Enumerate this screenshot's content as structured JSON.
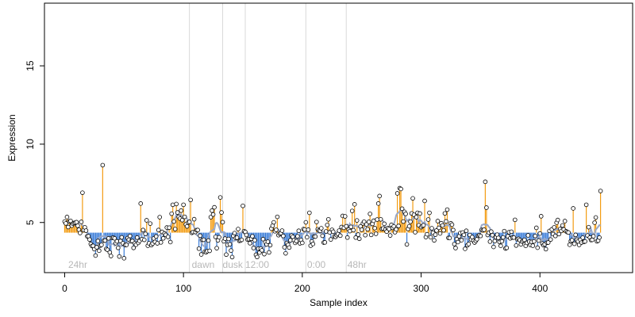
{
  "chart_data": {
    "type": "scatter",
    "xlabel": "Sample index",
    "ylabel": "Expression",
    "xlim": [
      -17,
      478
    ],
    "ylim": [
      1.8,
      19
    ],
    "xticks": [
      0,
      100,
      200,
      300,
      400
    ],
    "yticks": [
      5,
      10,
      15
    ],
    "segment_boundaries": [
      105,
      133,
      152,
      203,
      237
    ],
    "segment_labels": [
      {
        "text": "24hr",
        "x": 3
      },
      {
        "text": "dawn",
        "x": 107
      },
      {
        "text": "dusk",
        "x": 133
      },
      {
        "text": "12:00",
        "x": 152
      },
      {
        "text": "0:00",
        "x": 204
      },
      {
        "text": "48hr",
        "x": 238
      }
    ],
    "baseline": 4.35,
    "colors": {
      "above": "#f39c12",
      "below": "#3b7dd8",
      "trend": "#9aa9c8",
      "point_fill": "#ffffff",
      "point_stroke": "#000000",
      "boundary": "#d9d9d9"
    },
    "trend_window": 9,
    "sample_values": [
      5.06,
      4.94,
      5.35,
      4.71,
      5.07,
      5.1,
      4.8,
      4.92,
      4.97,
      4.99,
      5.02,
      4.79,
      4.54,
      4.33,
      5.04,
      6.9,
      4.51,
      4.69,
      4.48,
      4.12,
      4.13,
      3.91,
      3.63,
      3.5,
      3.51,
      3.3,
      2.89,
      3.42,
      3.82,
      3.2,
      3.53,
      3.57,
      8.66,
      3.84,
      3.85,
      3.31,
      3.26,
      3.99,
      3.09,
      2.86,
      4.02,
      4.03,
      3.99,
      3.68,
      3.8,
      3.38,
      2.83,
      3.82,
      4.05,
      3.67,
      2.72,
      3.56,
      3.57,
      4.0,
      3.9,
      4.14,
      3.8,
      3.82,
      3.38,
      3.67,
      3.58,
      4.04,
      3.7,
      3.82,
      6.21,
      3.94,
      4.52,
      3.89,
      4.27,
      5.14,
      3.52,
      3.67,
      4.93,
      3.56,
      3.65,
      3.98,
      3.76,
      4.11,
      3.67,
      4.52,
      5.34,
      3.73,
      4.4,
      3.99,
      4.3,
      4.21,
      4.68,
      4.08,
      4.67,
      3.75,
      5.56,
      6.13,
      5.06,
      4.58,
      6.18,
      5.64,
      5.36,
      5.25,
      5.76,
      5.15,
      6.13,
      5.36,
      4.88,
      4.75,
      5.0,
      5.04,
      6.44,
      4.34,
      4.39,
      5.21,
      4.39,
      4.51,
      4.52,
      3.33,
      4.16,
      2.96,
      3.89,
      3.9,
      3.14,
      3.1,
      3.17,
      3.85,
      3.19,
      5.34,
      5.76,
      5.51,
      5.97,
      4.08,
      3.36,
      3.86,
      4.06,
      6.6,
      5.64,
      5.02,
      3.8,
      3.97,
      2.95,
      3.57,
      3.95,
      3.61,
      3.21,
      2.79,
      4.14,
      4.32,
      4.01,
      4.03,
      4.58,
      3.83,
      3.85,
      3.89,
      6.06,
      4.45,
      4.4,
      4.2,
      3.91,
      3.94,
      3.68,
      3.96,
      4.12,
      3.37,
      3.87,
      2.94,
      2.8,
      3.33,
      3.08,
      3.33,
      3.22,
      3.94,
      2.98,
      3.75,
      3.6,
      3.77,
      3.09,
      3.55,
      4.61,
      4.79,
      5.01,
      4.44,
      4.53,
      5.36,
      4.19,
      4.29,
      4.32,
      4.48,
      4.14,
      3.42,
      3.03,
      3.69,
      3.58,
      3.4,
      3.87,
      4.17,
      4.08,
      3.87,
      3.7,
      3.81,
      4.12,
      4.47,
      3.67,
      3.88,
      3.7,
      4.58,
      4.55,
      5.01,
      4.06,
      4.54,
      5.62,
      3.52,
      3.79,
      3.63,
      4.1,
      4.1,
      5.03,
      4.57,
      4.49,
      4.46,
      4.63,
      4.15,
      3.72,
      3.73,
      4.43,
      4.84,
      5.2,
      4.37,
      3.92,
      4.53,
      4.41,
      4.1,
      4.08,
      4.19,
      4.27,
      4.48,
      4.16,
      4.71,
      5.42,
      4.66,
      5.39,
      4.76,
      4.04,
      4.55,
      4.45,
      4.72,
      5.74,
      4.51,
      6.16,
      4.04,
      5.13,
      4.23,
      3.96,
      4.75,
      4.54,
      4.94,
      5.05,
      4.19,
      4.88,
      4.57,
      5.04,
      5.55,
      4.21,
      4.91,
      5.11,
      4.64,
      4.28,
      5.19,
      6.21,
      6.69,
      5.2,
      4.59,
      4.62,
      4.92,
      4.55,
      4.42,
      4.64,
      4.58,
      4.17,
      4.85,
      4.66,
      4.75,
      4.38,
      4.56,
      6.86,
      4.78,
      7.19,
      7.14,
      5.88,
      5.06,
      5.68,
      5.55,
      3.6,
      4.59,
      4.76,
      5.05,
      5.58,
      6.54,
      5.49,
      4.38,
      5.34,
      5.62,
      4.82,
      5.57,
      4.7,
      4.78,
      4.82,
      6.38,
      4.07,
      4.25,
      5.19,
      5.62,
      4.06,
      4.63,
      4.34,
      3.86,
      4.22,
      4.49,
      5.09,
      4.66,
      4.3,
      4.95,
      4.81,
      4.5,
      5.58,
      5.07,
      5.82,
      4.02,
      4.01,
      4.95,
      4.86,
      4.52,
      3.62,
      3.37,
      3.94,
      3.75,
      4.12,
      4.33,
      3.87,
      4.36,
      4.21,
      3.32,
      4.47,
      3.55,
      3.63,
      4.2,
      3.92,
      4.07,
      3.84,
      3.72,
      3.83,
      3.93,
      4.15,
      4.19,
      4.14,
      4.53,
      4.5,
      4.54,
      7.6,
      5.95,
      4.2,
      4.35,
      3.78,
      4.42,
      4.19,
      3.44,
      3.81,
      4.06,
      4.22,
      4.02,
      3.76,
      3.51,
      3.8,
      4.05,
      4.45,
      3.34,
      3.38,
      4.12,
      4.38,
      3.99,
      4.41,
      4.04,
      4.04,
      5.17,
      3.53,
      3.93,
      3.96,
      3.88,
      3.61,
      3.78,
      3.84,
      3.89,
      3.51,
      3.7,
      4.18,
      3.78,
      3.57,
      3.76,
      3.52,
      3.79,
      4.14,
      4.66,
      3.39,
      3.85,
      4.3,
      5.4,
      3.66,
      3.55,
      3.61,
      3.3,
      3.71,
      3.72,
      4.46,
      3.91,
      4.56,
      4.26,
      4.69,
      4.14,
      4.99,
      5.16,
      4.26,
      4.58,
      4.46,
      4.81,
      4.56,
      5.09,
      4.44,
      4.39,
      4.36,
      3.58,
      3.81,
      3.87,
      5.9,
      3.64,
      4.21,
      3.9,
      3.79,
      3.57,
      3.9,
      3.72,
      4.03,
      3.76,
      3.79,
      6.13,
      4.17,
      4.7,
      4.04,
      3.88,
      3.89,
      4.12,
      4.99,
      5.32,
      3.8,
      3.84,
      4.04,
      7.01
    ]
  }
}
